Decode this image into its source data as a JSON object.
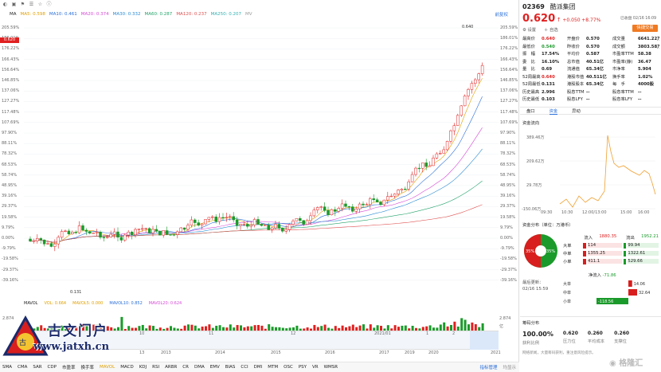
{
  "toolbar": {
    "ma": "MA",
    "ma5": "MA5: 0.598",
    "ma10": "MA10: 0.461",
    "ma20": "MA20: 0.374",
    "ma30": "MA30: 0.332",
    "ma60": "MA60: 0.287",
    "ma120": "MA120: 0.237",
    "ma250": "MA250: 0.207",
    "mav": "MV",
    "right": "前复权"
  },
  "top_icons": [
    "◐",
    "▣",
    "⚑",
    "☰",
    "☆",
    "ⓘ"
  ],
  "toolbar2": "MA",
  "left_axis": [
    "205.59%",
    "186.01%",
    "176.22%",
    "166.43%",
    "156.64%",
    "146.85%",
    "137.06%",
    "127.27%",
    "117.48%",
    "107.69%",
    "97.90%",
    "88.11%",
    "78.32%",
    "68.53%",
    "58.74%",
    "48.95%",
    "39.16%",
    "29.37%",
    "19.58%",
    "9.79%",
    "0.00%",
    "-9.79%",
    "-19.58%",
    "-29.37%",
    "-39.16%"
  ],
  "right_axis": [
    "205.59%",
    "186.01%",
    "176.22%",
    "166.43%",
    "156.64%",
    "146.85%",
    "137.06%",
    "127.27%",
    "117.48%",
    "107.69%",
    "97.90%",
    "88.11%",
    "78.32%",
    "68.53%",
    "58.74%",
    "48.95%",
    "39.16%",
    "29.37%",
    "19.58%",
    "9.79%",
    "0.00%",
    "-9.79%",
    "-19.58%",
    "-29.37%",
    "-39.16%"
  ],
  "price_tag": "0.620",
  "high_label": "0.640",
  "low_label": "0.131",
  "vol_header": {
    "mavol": "MAVOL",
    "vol": "VOL: 0.664",
    "v5": "MAVOL5: 0.000",
    "v10": "MAVOL10: 0.852",
    "v20": "MAVOL20: 0.624"
  },
  "vol_axis": {
    "top": "2.874",
    "unit": "亿"
  },
  "years": [
    "13",
    "2013",
    "2014",
    "2015",
    "2016",
    "2017",
    "2019",
    "2020",
    "2021"
  ],
  "years_mid": [
    "10",
    "11",
    "12",
    "2021/01",
    "1",
    "2"
  ],
  "bottom_tabs": [
    "SMA",
    "CMA",
    "SAR",
    "CDP",
    "市盈率",
    "换手率",
    "MAVOL",
    "MACD",
    "KDJ",
    "RSI",
    "ARBR",
    "CR",
    "DMA",
    "EMV",
    "BIAS",
    "CCI",
    "DMI",
    "MTM",
    "OSC",
    "PSY",
    "VR",
    "WMSR"
  ],
  "bottom_right": "指标管理",
  "bottom_far": "均显示",
  "stock": {
    "code": "02369",
    "name": "酷派集团",
    "price": "0.620",
    "change": "+0.050",
    "pct": "+8.77%",
    "status": "已收盘 02/16 16:09",
    "btn_cfg": "设置",
    "btn_fav": "自选",
    "btn_trade": "快捷交易"
  },
  "quote": [
    [
      "最高价",
      "0.640",
      "开盘价",
      "0.570",
      "成交量",
      "6641.22万"
    ],
    [
      "最低价",
      "0.540",
      "昨收价",
      "0.570",
      "成交额",
      "3803.58万"
    ],
    [
      "振　幅",
      "17.54%",
      "平均价",
      "0.587",
      "市盈率TTM",
      "58.38"
    ],
    [
      "委　比",
      "16.10%",
      "总市值",
      "40.51亿",
      "市盈率(静)",
      "36.47"
    ],
    [
      "量　比",
      "0.69",
      "流通值",
      "65.34亿",
      "市净率",
      "5.904"
    ],
    [
      "52周最高",
      "0.640",
      "港股市值",
      "40.511亿",
      "换手率",
      "1.02%"
    ],
    [
      "52周最低",
      "0.131",
      "港股股本",
      "65.34亿",
      "每　手",
      "4000股"
    ],
    [
      "历史最高",
      "2.996",
      "股息TTM",
      "--",
      "股息率TTM",
      "--"
    ],
    [
      "历史最低",
      "0.103",
      "股息LFY",
      "--",
      "股息率LFY",
      "--"
    ]
  ],
  "side_tabs": [
    "盘口",
    "资金",
    "异动"
  ],
  "flow": {
    "title": "资金流向",
    "y": [
      "389.46万",
      "209.62万",
      "29.78万",
      "-150.06万"
    ],
    "x": [
      "09:30",
      "10:30",
      "12:00/13:00",
      "15:00",
      "16:00"
    ]
  },
  "dist": {
    "title": "资金分布（单位：万港币）",
    "in_label": "流入",
    "in": "1880.35",
    "out_label": "流出",
    "out": "1952.21",
    "rows": [
      [
        "大单",
        "114",
        "99.94"
      ],
      [
        "中单",
        "1355.25",
        "1322.61"
      ],
      [
        "小单",
        "411.1",
        "529.66"
      ]
    ],
    "pie": [
      "35%",
      "35%"
    ]
  },
  "net": {
    "title": "净流入",
    "value": "-71.86",
    "update": "最后更新：",
    "date": "02/16 15:59",
    "rows": [
      [
        "大单",
        "14.06"
      ],
      [
        "中单",
        "32.64"
      ],
      [
        "小单",
        "-118.56"
      ]
    ]
  },
  "chip": {
    "title": "筹码分布",
    "vals": [
      [
        "100.00%",
        "获利比例"
      ],
      [
        "0.620",
        "压力位"
      ],
      [
        "0.260",
        "平均成本"
      ],
      [
        "0.260",
        "支撑位"
      ]
    ],
    "note": "网络新闻，大量筹码获利，重注意风险提示。"
  },
  "logo": {
    "text": "古文门户",
    "url": "www.jatxh.cn"
  },
  "watermark": "格隆汇",
  "colors": {
    "up": "#e02020",
    "down": "#1a9a2a"
  }
}
